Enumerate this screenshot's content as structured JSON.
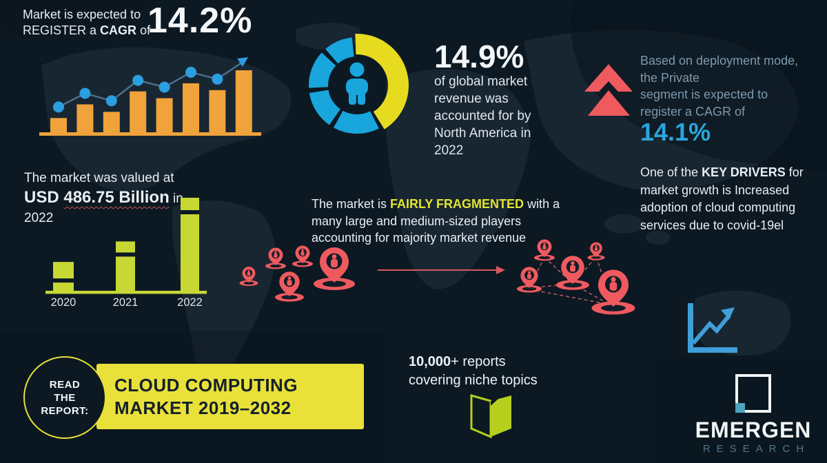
{
  "colors": {
    "background": "#0c1923",
    "world_map": "#2a3a47",
    "text_white": "#e9eef2",
    "text_lightblue": "#7d99ad",
    "bar_orange": "#f0a33a",
    "dot_blue": "#2b9fdf",
    "trend_line": "#4d708c",
    "donut_yellow": "#e6db1f",
    "donut_blue": "#18a6dd",
    "pin_coral": "#ef5a5f",
    "bar_lime": "#c7d835",
    "cta_yellow": "#e9e13a",
    "highlight_yellow": "#e2e430",
    "value_cyan": "#2aa6de",
    "book_green": "#b6cf1d",
    "chart_icon_blue": "#3f9fd8",
    "logo_teal": "#4fa3bd",
    "logo_sub_gray": "#51758a",
    "dark_text_on_yellow": "#14202b"
  },
  "growth_stat": {
    "line1": "Market is expected to",
    "line2_pre": "REGISTER a ",
    "line2_bold": "CAGR",
    "line2_post": " of",
    "value": "14.2%"
  },
  "donut_stat": {
    "value": "14.9%",
    "lines": [
      "of global market",
      "revenue was",
      "accounted for by",
      "North America in",
      "2022"
    ]
  },
  "deployment": {
    "line1": "Based on deployment mode,",
    "line2": "the Private",
    "line3": " segment is expected to",
    "line4": "register a CAGR of",
    "value": "14.1%"
  },
  "key_drivers": {
    "pre": "One of the ",
    "bold": "KEY DRIVERS",
    "post": " for market growth is Increased adoption of cloud computing services due to covid-19el"
  },
  "market_value": {
    "line1": "The market was valued at",
    "value_prefix": "USD ",
    "value": "486.75 Billion",
    "suffix": " in",
    "year": "2022"
  },
  "fragmented": {
    "pre": "The market is ",
    "highlight": "FAIRLY FRAGMENTED",
    "post": " with a many large and medium-sized players accounting for majority market revenue"
  },
  "reports": {
    "count": "10,000",
    "suffix": "+ reports",
    "line2": "covering niche topics"
  },
  "cta": {
    "badge_line1": "READ",
    "badge_line2": "THE",
    "badge_line3": "REPORT:",
    "title_line1": "CLOUD COMPUTING",
    "title_line2": "MARKET 2019–2032"
  },
  "logo": {
    "title": "EMERGEN",
    "subtitle": "RESEARCH"
  },
  "icons": [
    "trend-arrow-icon",
    "person-icon",
    "double-up-arrows-icon",
    "location-pin-person-icon",
    "right-arrow-icon",
    "open-book-icon",
    "line-chart-icon",
    "logo-square-icon"
  ],
  "chart_data": [
    {
      "type": "bar",
      "id": "cagr-growth-chart",
      "title": "Market expected to register a CAGR of 14.2% (illustrative rising bars with trend line)",
      "categories": [
        "",
        "",
        "",
        "",
        "",
        "",
        "",
        ""
      ],
      "values": [
        23,
        45,
        33,
        66,
        55,
        79,
        68,
        100
      ],
      "ylim": [
        0,
        100
      ],
      "bar_color": "#f0a33a",
      "dot_color": "#2b9fdf",
      "line_color": "#4d708c",
      "overlay": "zigzag trend line with dots ending in an up-right arrow",
      "grid": false,
      "legend": false
    },
    {
      "type": "pie",
      "id": "north-america-share-donut",
      "title": "14.9% of global market revenue accounted for by North America in 2022",
      "center_icon": "person-icon",
      "segments": [
        {
          "label": "highlight",
          "color": "#e6db1f",
          "start_deg": -2,
          "end_deg": 148,
          "outer_r": 75,
          "inner_r": 45
        },
        {
          "label": "rest-1",
          "color": "#18a6dd",
          "start_deg": 153,
          "end_deg": 209,
          "outer_r": 70,
          "inner_r": 42
        },
        {
          "label": "rest-2",
          "color": "#18a6dd",
          "start_deg": 215,
          "end_deg": 261,
          "outer_r": 70,
          "inner_r": 42
        },
        {
          "label": "rest-3",
          "color": "#18a6dd",
          "start_deg": 267,
          "end_deg": 313,
          "outer_r": 70,
          "inner_r": 42
        },
        {
          "label": "rest-4",
          "color": "#18a6dd",
          "start_deg": 319,
          "end_deg": 354,
          "outer_r": 70,
          "inner_r": 42
        }
      ]
    },
    {
      "type": "bar",
      "id": "market-value-chart",
      "title": "Market value by year (USD 486.75 Billion in 2022)",
      "categories": [
        "2020",
        "2021",
        "2022"
      ],
      "values_relative": [
        31,
        53,
        100
      ],
      "value_2022_usd_billion": 486.75,
      "bar_color": "#c7d835",
      "gap_offsets": [
        24,
        16,
        18
      ],
      "grid": false,
      "legend": false
    }
  ]
}
